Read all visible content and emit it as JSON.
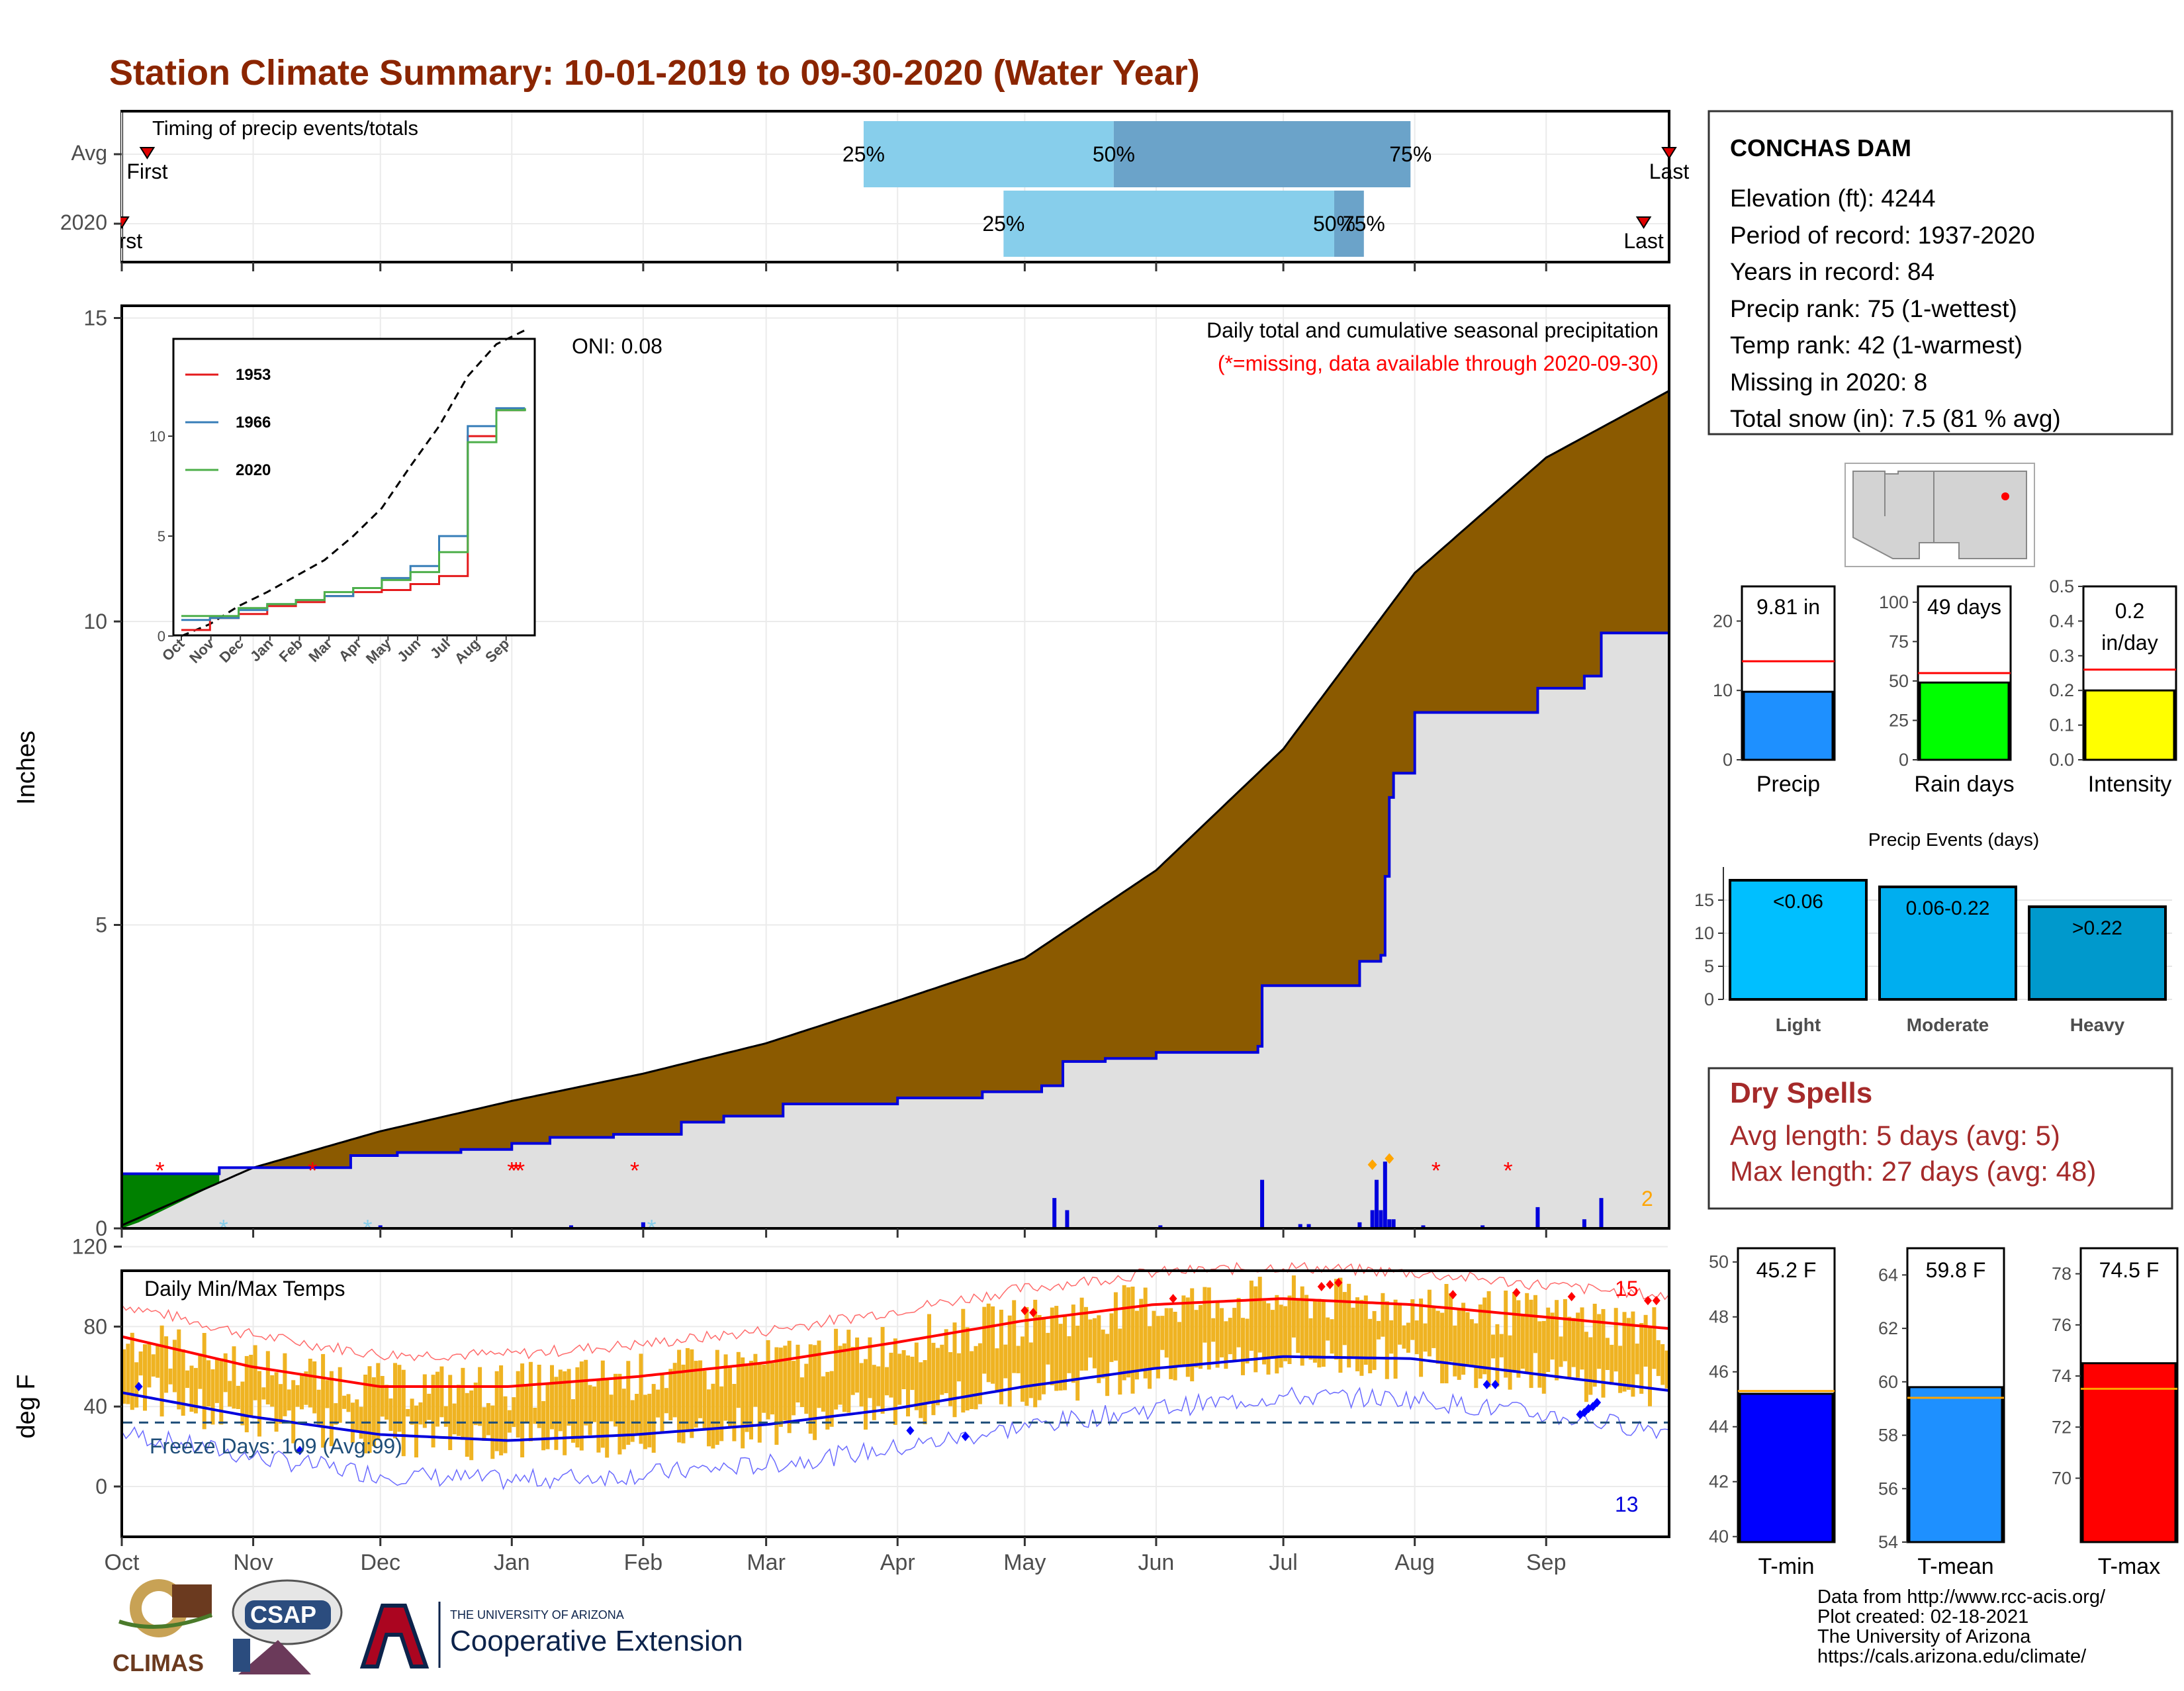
{
  "title": "Station Climate Summary: 10-01-2019 to 09-30-2020 (Water Year)",
  "colors": {
    "title": "#8B2500",
    "timing_light": "#87CEEB",
    "timing_mid": "#6BA3C9",
    "cum_avg": "#8B5A00",
    "cum_obs": "#E0E0E0",
    "cum_line": "#0000DD",
    "temp_bars": "#EFB322",
    "tmax_line": "#FF0000",
    "tmin_line": "#0000DD",
    "precip_bar": "#1E90FF",
    "raindays_bar": "#00FF00",
    "intensity_bar": "#FFFF00",
    "events": [
      "#00BFFF",
      "#00AEEF",
      "#0099CC"
    ],
    "tmin_bar": "#0000FF",
    "tmean_bar": "#1E90FF",
    "tmax_bar": "#FF0000",
    "dry_spells": "#A52A2A"
  },
  "timing": {
    "title": "Timing of precip events/totals",
    "rows": [
      {
        "label": "Avg",
        "first": "First",
        "last": "Last",
        "p25": "25%",
        "p50": "50%",
        "p75": "75%",
        "first_date": "2019-10-07",
        "last_date": "2020-09-30",
        "p25_date": "2020-03-24",
        "p50_date": "2020-05-22",
        "p75_date": "2020-07-31"
      },
      {
        "label": "2020",
        "first": "First",
        "last": "Last",
        "p25": "25%",
        "p50": "50%",
        "p75": "75%",
        "first_date": "2019-10-01",
        "last_date": "2020-09-24",
        "p25_date": "2020-04-26",
        "p50_date": "2020-07-13",
        "p75_date": "2020-07-20"
      }
    ]
  },
  "precip_panel": {
    "ylabel": "Inches",
    "yticks": [
      "0",
      "5",
      "10",
      "15"
    ],
    "header": "Daily total and cumulative seasonal precipitation",
    "subheader": "(*=missing, data available through 2020-09-30)",
    "oni": "ONI: 0.08",
    "corner_count": "2"
  },
  "inset": {
    "yticks": [
      "0",
      "5",
      "10"
    ],
    "xticks": [
      "Oct",
      "Nov",
      "Dec",
      "Jan",
      "Feb",
      "Mar",
      "Apr",
      "May",
      "Jun",
      "Jul",
      "Aug",
      "Sep"
    ],
    "legend": [
      {
        "name": "1953",
        "color": "#E41A1C"
      },
      {
        "name": "1966",
        "color": "#377EB8"
      },
      {
        "name": "2020",
        "color": "#4DAF4A"
      }
    ]
  },
  "temp_panel": {
    "ylabel": "deg F",
    "title": "Daily Min/Max Temps",
    "yticks": [
      "0",
      "40",
      "80",
      "120"
    ],
    "freeze": "Freeze Days: 109 (Avg:99)",
    "max_count": "15",
    "min_count": "13"
  },
  "months": [
    "Oct",
    "Nov",
    "Dec",
    "Jan",
    "Feb",
    "Mar",
    "Apr",
    "May",
    "Jun",
    "Jul",
    "Aug",
    "Sep"
  ],
  "station": {
    "name": "CONCHAS DAM",
    "lines": [
      "Elevation (ft): 4244",
      "Period of record: 1937-2020",
      "Years in record: 84",
      "Precip rank: 75 (1-wettest)",
      "Temp rank: 42 (1-warmest)",
      "Missing in 2020: 8",
      "Total snow (in): 7.5 (81 % avg)"
    ]
  },
  "minis": [
    {
      "label": "Precip",
      "value_text": "9.81 in",
      "yticks": [
        "0",
        "10",
        "20"
      ],
      "ylim": [
        0,
        25
      ],
      "value": 9.81,
      "avg": 14.2
    },
    {
      "label": "Rain days",
      "value_text": "49 days",
      "yticks": [
        "0",
        "25",
        "50",
        "75",
        "100"
      ],
      "ylim": [
        0,
        110
      ],
      "value": 49,
      "avg": 55
    },
    {
      "label": "Intensity",
      "value_text_1": "0.2",
      "value_text_2": "in/day",
      "yticks": [
        "0.0",
        "0.1",
        "0.2",
        "0.3",
        "0.4",
        "0.5"
      ],
      "ylim": [
        0,
        0.5
      ],
      "value": 0.2,
      "avg": 0.26
    }
  ],
  "events": {
    "title": "Precip Events (days)",
    "yticks": [
      "0",
      "5",
      "10",
      "15"
    ],
    "categories": [
      "Light",
      "Moderate",
      "Heavy"
    ],
    "bar_labels": [
      "<0.06",
      "0.06-0.22",
      ">0.22"
    ],
    "values": [
      18,
      17,
      14
    ]
  },
  "dry": {
    "title": "Dry Spells",
    "avg": "Avg length: 5 days (avg: 5)",
    "max": "Max length: 27 days (avg: 48)"
  },
  "temps": [
    {
      "label": "T-min",
      "value_text": "45.2 F",
      "yticks": [
        "40",
        "42",
        "44",
        "46",
        "48",
        "50"
      ],
      "ylim": [
        39.8,
        50.5
      ],
      "value": 45.2,
      "avg": 45.3
    },
    {
      "label": "T-mean",
      "value_text": "59.8 F",
      "yticks": [
        "54",
        "56",
        "58",
        "60",
        "62",
        "64"
      ],
      "ylim": [
        54,
        65
      ],
      "value": 59.8,
      "avg": 59.4
    },
    {
      "label": "T-max",
      "value_text": "74.5 F",
      "yticks": [
        "70",
        "72",
        "74",
        "76",
        "78"
      ],
      "ylim": [
        67.5,
        79
      ],
      "value": 74.5,
      "avg": 73.5
    }
  ],
  "credits": [
    "Data from http://www.rcc-acis.org/",
    "Plot created: 02-18-2021",
    "The University of Arizona",
    "https://cals.arizona.edu/climate/"
  ],
  "logos": {
    "climas": "CLIMAS",
    "csap": "CSAP",
    "ua_small": "THE UNIVERSITY OF ARIZONA",
    "ua_big": "Cooperative Extension"
  },
  "chart_data": [
    {
      "type": "area",
      "title": "Daily total and cumulative seasonal precipitation",
      "ylabel": "Inches",
      "ylim": [
        0,
        15
      ],
      "x": [
        "2019-10-01",
        "2019-11-01",
        "2019-12-01",
        "2020-01-01",
        "2020-02-01",
        "2020-03-01",
        "2020-04-01",
        "2020-05-01",
        "2020-06-01",
        "2020-07-01",
        "2020-08-01",
        "2020-09-01",
        "2020-09-30"
      ],
      "series": [
        {
          "name": "Average cumulative",
          "values": [
            0.05,
            1.0,
            1.6,
            2.1,
            2.55,
            3.05,
            3.75,
            4.45,
            5.9,
            7.9,
            10.8,
            12.7,
            13.8
          ]
        },
        {
          "name": "2020 cumulative",
          "values": [
            0.9,
            0.95,
            1.3,
            1.5,
            1.7,
            2.0,
            2.35,
            2.75,
            3.0,
            4.0,
            7.5,
            8.3,
            9.81
          ]
        }
      ]
    },
    {
      "type": "line",
      "title": "Daily Min/Max Temps",
      "ylabel": "deg F",
      "ylim": [
        -40,
        125
      ],
      "x": [
        "Oct",
        "Nov",
        "Dec",
        "Jan",
        "Feb",
        "Mar",
        "Apr",
        "May",
        "Jun",
        "Jul",
        "Aug",
        "Sep"
      ],
      "series": [
        {
          "name": "Avg max",
          "values": [
            75,
            60,
            50,
            50,
            55,
            62,
            72,
            83,
            91,
            94,
            91,
            85
          ]
        },
        {
          "name": "Avg min",
          "values": [
            47,
            35,
            26,
            23,
            26,
            31,
            39,
            50,
            59,
            65,
            64,
            56
          ]
        }
      ]
    },
    {
      "type": "bar",
      "title": "Precip Events (days)",
      "categories": [
        "Light",
        "Moderate",
        "Heavy"
      ],
      "values": [
        18,
        17,
        14
      ]
    }
  ]
}
